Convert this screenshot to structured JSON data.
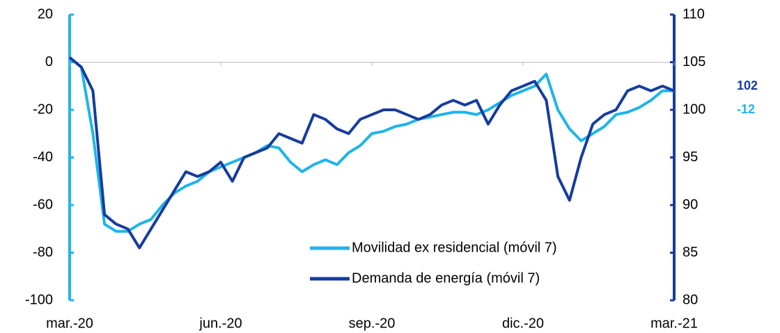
{
  "chart_data": {
    "type": "line",
    "categories": [
      "mar.-20",
      null,
      null,
      null,
      null,
      null,
      null,
      null,
      null,
      null,
      null,
      null,
      null,
      "jun.-20",
      null,
      null,
      null,
      null,
      null,
      null,
      null,
      null,
      null,
      null,
      null,
      null,
      "sep.-20",
      null,
      null,
      null,
      null,
      null,
      null,
      null,
      null,
      null,
      null,
      null,
      null,
      "dic.-20",
      null,
      null,
      null,
      null,
      null,
      null,
      null,
      null,
      null,
      null,
      null,
      null,
      "mar.-21"
    ],
    "series": [
      {
        "name": "Movilidad ex residencial (móvil 7)",
        "color": "#1eb4ea",
        "axis": "y",
        "values": [
          2,
          -2,
          -30,
          -68,
          -71,
          -71,
          -68,
          -66,
          -60,
          -55,
          -52,
          -50,
          -46,
          -44,
          -42,
          -40,
          -38,
          -35,
          -36,
          -42,
          -46,
          -43,
          -41,
          -43,
          -38,
          -35,
          -30,
          -29,
          -27,
          -26,
          -24,
          -23,
          -22,
          -21,
          -21,
          -22,
          -20,
          -17,
          -14,
          -12,
          -10,
          -5,
          -20,
          -28,
          -33,
          -30,
          -27,
          -22,
          -21,
          -19,
          -16,
          -12,
          -12
        ]
      },
      {
        "name": "Demanda de energía (móvil 7)",
        "color": "#153c9e",
        "axis": "y2",
        "values": [
          105.5,
          104.5,
          102,
          89,
          88,
          87.5,
          85.5,
          87.5,
          89.5,
          91.5,
          93.5,
          93,
          93.5,
          94.5,
          92.5,
          95,
          95.5,
          96,
          97.5,
          97,
          96.5,
          99.5,
          99,
          98,
          97.5,
          99,
          99.5,
          100,
          100,
          99.5,
          99,
          99.5,
          100.5,
          101,
          100.5,
          101,
          98.5,
          100.5,
          102,
          102.5,
          103,
          101,
          93,
          90.5,
          95,
          98.5,
          99.5,
          100,
          102,
          102.5,
          102,
          102.5,
          102
        ]
      }
    ],
    "ylim": [
      -100,
      20
    ],
    "yticks": [
      -100,
      -80,
      -60,
      -40,
      -20,
      0,
      20
    ],
    "y2lim": [
      80,
      110
    ],
    "y2ticks": [
      80,
      85,
      90,
      95,
      100,
      105,
      110
    ],
    "end_labels": true
  }
}
